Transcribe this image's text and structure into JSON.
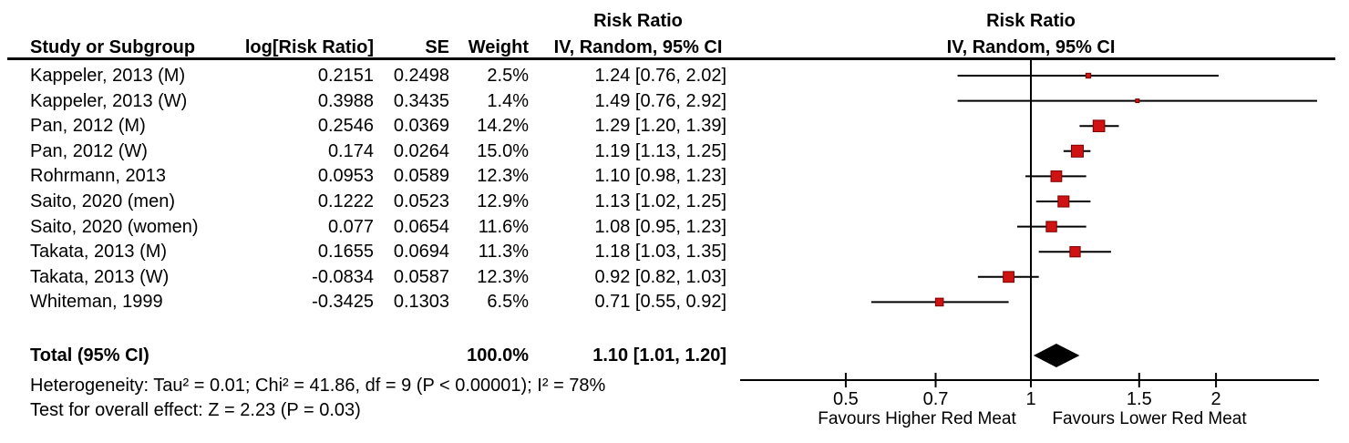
{
  "colors": {
    "marker_fill": "#ce1312",
    "marker_border": "#7a0000",
    "line": "#000000",
    "diamond": "#000000",
    "text": "#000000"
  },
  "table": {
    "headers": {
      "study": "Study or Subgroup",
      "log_rr": "log[Risk Ratio]",
      "se": "SE",
      "weight": "Weight",
      "effect_line1": "Risk Ratio",
      "effect_line2": "IV, Random, 95% CI"
    },
    "rows": [
      {
        "study": "Kappeler, 2013 (M)",
        "log_rr": "0.2151",
        "se": "0.2498",
        "weight": "2.5%",
        "ci_text": "1.24 [0.76, 2.02]"
      },
      {
        "study": "Kappeler, 2013 (W)",
        "log_rr": "0.3988",
        "se": "0.3435",
        "weight": "1.4%",
        "ci_text": "1.49 [0.76, 2.92]"
      },
      {
        "study": "Pan, 2012 (M)",
        "log_rr": "0.2546",
        "se": "0.0369",
        "weight": "14.2%",
        "ci_text": "1.29 [1.20, 1.39]"
      },
      {
        "study": "Pan, 2012 (W)",
        "log_rr": "0.174",
        "se": "0.0264",
        "weight": "15.0%",
        "ci_text": "1.19 [1.13, 1.25]"
      },
      {
        "study": "Rohrmann, 2013",
        "log_rr": "0.0953",
        "se": "0.0589",
        "weight": "12.3%",
        "ci_text": "1.10 [0.98, 1.23]"
      },
      {
        "study": "Saito, 2020 (men)",
        "log_rr": "0.1222",
        "se": "0.0523",
        "weight": "12.9%",
        "ci_text": "1.13 [1.02, 1.25]"
      },
      {
        "study": "Saito, 2020 (women)",
        "log_rr": "0.077",
        "se": "0.0654",
        "weight": "11.6%",
        "ci_text": "1.08 [0.95, 1.23]"
      },
      {
        "study": "Takata, 2013 (M)",
        "log_rr": "0.1655",
        "se": "0.0694",
        "weight": "11.3%",
        "ci_text": "1.18 [1.03, 1.35]"
      },
      {
        "study": "Takata, 2013 (W)",
        "log_rr": "-0.0834",
        "se": "0.0587",
        "weight": "12.3%",
        "ci_text": "0.92 [0.82, 1.03]"
      },
      {
        "study": "Whiteman, 1999",
        "log_rr": "-0.3425",
        "se": "0.1303",
        "weight": "6.5%",
        "ci_text": "0.71 [0.55, 0.92]"
      }
    ],
    "total": {
      "label": "Total (95% CI)",
      "weight": "100.0%",
      "ci_text": "1.10 [1.01, 1.20]"
    },
    "heterogeneity": "Heterogeneity: Tau² = 0.01; Chi² = 41.86, df = 9 (P < 0.00001); I² = 78%",
    "overall_effect": "Test for overall effect: Z = 2.23 (P = 0.03)"
  },
  "plot": {
    "header_line1": "Risk Ratio",
    "header_line2": "IV, Random, 95% CI",
    "favours_left": "Favours Higher Red Meat",
    "favours_right": "Favours Lower Red Meat"
  },
  "chart_data": {
    "type": "forest",
    "effect_measure": "Risk Ratio",
    "model": "IV, Random, 95% CI",
    "scale": "log",
    "null_value": 1,
    "axis_ticks": [
      0.5,
      0.7,
      1,
      1.5,
      2
    ],
    "axis_range": [
      0.34,
      2.95
    ],
    "studies": [
      {
        "name": "Kappeler, 2013 (M)",
        "rr": 1.24,
        "lo": 0.76,
        "hi": 2.02,
        "weight_pct": 2.5
      },
      {
        "name": "Kappeler, 2013 (W)",
        "rr": 1.49,
        "lo": 0.76,
        "hi": 2.92,
        "weight_pct": 1.4
      },
      {
        "name": "Pan, 2012 (M)",
        "rr": 1.29,
        "lo": 1.2,
        "hi": 1.39,
        "weight_pct": 14.2
      },
      {
        "name": "Pan, 2012 (W)",
        "rr": 1.19,
        "lo": 1.13,
        "hi": 1.25,
        "weight_pct": 15.0
      },
      {
        "name": "Rohrmann, 2013",
        "rr": 1.1,
        "lo": 0.98,
        "hi": 1.23,
        "weight_pct": 12.3
      },
      {
        "name": "Saito, 2020 (men)",
        "rr": 1.13,
        "lo": 1.02,
        "hi": 1.25,
        "weight_pct": 12.9
      },
      {
        "name": "Saito, 2020 (women)",
        "rr": 1.08,
        "lo": 0.95,
        "hi": 1.23,
        "weight_pct": 11.6
      },
      {
        "name": "Takata, 2013 (M)",
        "rr": 1.18,
        "lo": 1.03,
        "hi": 1.35,
        "weight_pct": 11.3
      },
      {
        "name": "Takata, 2013 (W)",
        "rr": 0.92,
        "lo": 0.82,
        "hi": 1.03,
        "weight_pct": 12.3
      },
      {
        "name": "Whiteman, 1999",
        "rr": 0.71,
        "lo": 0.55,
        "hi": 0.92,
        "weight_pct": 6.5
      }
    ],
    "total": {
      "rr": 1.1,
      "lo": 1.01,
      "hi": 1.2,
      "weight_pct": 100.0
    },
    "heterogeneity": {
      "tau2": 0.01,
      "chi2": 41.86,
      "df": 9,
      "p": "< 0.00001",
      "i2_pct": 78
    },
    "overall_effect": {
      "z": 2.23,
      "p": 0.03
    },
    "xlabel_left": "Favours Higher Red Meat",
    "xlabel_right": "Favours Lower Red Meat"
  }
}
